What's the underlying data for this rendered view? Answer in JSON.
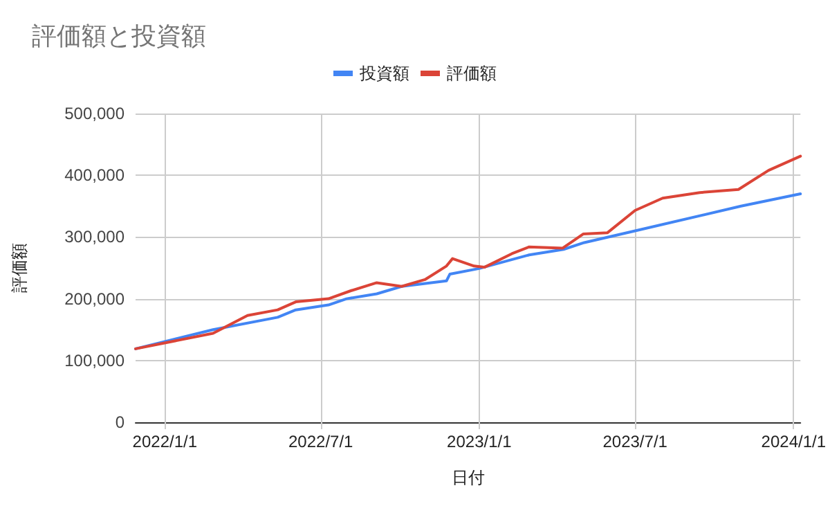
{
  "chart_data": {
    "type": "line",
    "title": "評価額と投資額",
    "xlabel": "日付",
    "ylabel": "評価額",
    "xlim": [
      "2021-11-28",
      "2024-01-09"
    ],
    "xticks": [
      {
        "value": "2022-01-01",
        "label": "2022/1/1"
      },
      {
        "value": "2022-07-01",
        "label": "2022/7/1"
      },
      {
        "value": "2023-01-01",
        "label": "2023/1/1"
      },
      {
        "value": "2023-07-01",
        "label": "2023/7/1"
      },
      {
        "value": "2024-01-01",
        "label": "2024/1/1"
      }
    ],
    "ylim": [
      0,
      500000
    ],
    "yticks": [
      0,
      {
        "value": 100000,
        "label": "100,000"
      },
      {
        "value": 200000,
        "label": "200,000"
      },
      {
        "value": 300000,
        "label": "300,000"
      },
      {
        "value": 400000,
        "label": "400,000"
      },
      {
        "value": 500000,
        "label": "500,000"
      }
    ],
    "grid": true,
    "legend": "top",
    "marker": "none",
    "line_style": "solid",
    "series": [
      {
        "name": "投資額",
        "color": "#4285f4",
        "x": [
          "2021-11-28",
          "2022-02-26",
          "2022-05-12",
          "2022-06-02",
          "2022-07-10",
          "2022-07-31",
          "2022-09-04",
          "2022-10-03",
          "2022-11-24",
          "2022-11-28",
          "2023-01-01",
          "2023-02-28",
          "2023-04-09",
          "2023-05-03",
          "2023-07-01",
          "2023-11-01",
          "2024-01-09"
        ],
        "values": [
          119000,
          150000,
          170000,
          182000,
          190000,
          200000,
          208000,
          220000,
          229000,
          240000,
          249000,
          271000,
          280000,
          291000,
          310000,
          350000,
          370000
        ]
      },
      {
        "name": "評価額",
        "color": "#db4437",
        "x": [
          "2021-11-28",
          "2022-02-26",
          "2022-04-07",
          "2022-05-12",
          "2022-06-02",
          "2022-07-10",
          "2022-08-05",
          "2022-09-04",
          "2022-10-03",
          "2022-10-30",
          "2022-11-24",
          "2022-12-01",
          "2022-12-26",
          "2023-01-07",
          "2023-02-08",
          "2023-02-28",
          "2023-04-08",
          "2023-05-02",
          "2023-05-30",
          "2023-07-01",
          "2023-08-02",
          "2023-09-14",
          "2023-10-29",
          "2023-12-03",
          "2024-01-09"
        ],
        "values": [
          119000,
          144000,
          173000,
          182000,
          195000,
          200000,
          213000,
          226000,
          220000,
          231000,
          253000,
          265000,
          253000,
          251000,
          273000,
          284000,
          282000,
          305000,
          307000,
          343000,
          363000,
          372000,
          377000,
          408000,
          431000
        ]
      }
    ]
  }
}
